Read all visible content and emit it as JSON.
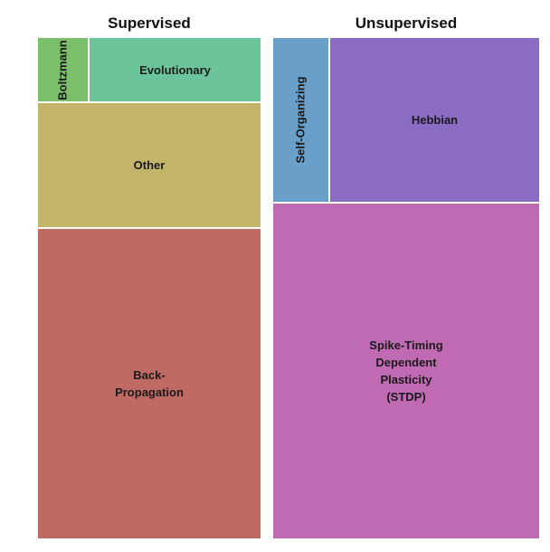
{
  "chart_data": {
    "type": "treemap",
    "groups": [
      {
        "title": "Supervised",
        "items": [
          {
            "label": "Boltzmann",
            "value": 3,
            "color": "#7bbf6a",
            "vertical": true
          },
          {
            "label": "Evolutionary",
            "value": 10,
            "color": "#6cc49a",
            "vertical": false
          },
          {
            "label": "Other",
            "value": 25,
            "color": "#c3b46a",
            "vertical": false
          },
          {
            "label": "Back-\nPropagation",
            "value": 62,
            "color": "#c06a64",
            "vertical": false
          }
        ]
      },
      {
        "title": "Unsupervised",
        "items": [
          {
            "label": "Self-Organizing",
            "value": 7,
            "color": "#6a9fc9",
            "vertical": true
          },
          {
            "label": "Hebbian",
            "value": 26,
            "color": "#8a6cc4",
            "vertical": false
          },
          {
            "label": "Spike-Timing\nDependent\nPlasticity\n(STDP)",
            "value": 67,
            "color": "#c06ab4",
            "vertical": false
          }
        ]
      }
    ]
  }
}
